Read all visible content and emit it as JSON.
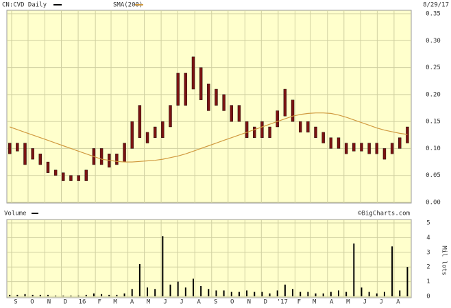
{
  "header": {
    "symbol": "CN:CVD Daily",
    "sma": "SMA(200)",
    "date": "8/29/17"
  },
  "chart_data": [
    {
      "type": "range",
      "x": [
        -0.5,
        1.5,
        3.5,
        5.5,
        7.5,
        9.5,
        11.5,
        13.5,
        15.5,
        17.5,
        19.5,
        21.5,
        23.5,
        25.5,
        27.5,
        29.5,
        31.5,
        33.5,
        35.5,
        37.5,
        39.5,
        41.5,
        43.5,
        45.5,
        47.5,
        49.5,
        51.5,
        53.5,
        55.5,
        57.5,
        59.5,
        61.5,
        63.5,
        65.5,
        67.5,
        69.5,
        71.5,
        73.5,
        75.5,
        77.5,
        79.5,
        81.5,
        83.5,
        85.5,
        87.5,
        89.5,
        91.5,
        93.5,
        95.5,
        97.5,
        99.5,
        101.5,
        103.5
      ],
      "series": [
        {
          "name": "CN:CVD Daily",
          "color": "#7a1212",
          "high": [
            0.11,
            0.11,
            0.11,
            0.1,
            0.09,
            0.075,
            0.06,
            0.055,
            0.05,
            0.05,
            0.06,
            0.1,
            0.1,
            0.09,
            0.09,
            0.11,
            0.15,
            0.18,
            0.13,
            0.14,
            0.15,
            0.18,
            0.24,
            0.24,
            0.27,
            0.25,
            0.22,
            0.21,
            0.2,
            0.18,
            0.18,
            0.15,
            0.14,
            0.15,
            0.14,
            0.17,
            0.21,
            0.19,
            0.15,
            0.15,
            0.14,
            0.13,
            0.12,
            0.12,
            0.11,
            0.11,
            0.11,
            0.11,
            0.11,
            0.1,
            0.11,
            0.12,
            0.14
          ],
          "low": [
            0.09,
            0.095,
            0.07,
            0.08,
            0.07,
            0.055,
            0.05,
            0.04,
            0.04,
            0.04,
            0.04,
            0.07,
            0.07,
            0.065,
            0.07,
            0.075,
            0.1,
            0.12,
            0.11,
            0.12,
            0.12,
            0.14,
            0.18,
            0.18,
            0.21,
            0.19,
            0.17,
            0.18,
            0.17,
            0.15,
            0.15,
            0.12,
            0.12,
            0.12,
            0.12,
            0.14,
            0.16,
            0.15,
            0.13,
            0.13,
            0.12,
            0.11,
            0.1,
            0.1,
            0.09,
            0.095,
            0.095,
            0.09,
            0.09,
            0.08,
            0.09,
            0.1,
            0.11
          ]
        },
        {
          "name": "SMA(200)",
          "color": "#d09a40",
          "values": [
            0.14,
            0.135,
            0.13,
            0.125,
            0.12,
            0.115,
            0.11,
            0.105,
            0.1,
            0.095,
            0.09,
            0.085,
            0.08,
            0.078,
            0.076,
            0.075,
            0.075,
            0.076,
            0.077,
            0.078,
            0.08,
            0.083,
            0.086,
            0.09,
            0.095,
            0.1,
            0.105,
            0.11,
            0.115,
            0.12,
            0.125,
            0.13,
            0.135,
            0.14,
            0.145,
            0.15,
            0.155,
            0.16,
            0.163,
            0.165,
            0.166,
            0.166,
            0.165,
            0.162,
            0.158,
            0.153,
            0.148,
            0.143,
            0.138,
            0.134,
            0.131,
            0.128,
            0.126
          ]
        }
      ],
      "xlim": [
        -1.25,
        104.5
      ],
      "xticks": [
        {
          "value": 0,
          "label": "S"
        },
        {
          "value": 4.3,
          "label": "O"
        },
        {
          "value": 8.7,
          "label": "N"
        },
        {
          "value": 13,
          "label": "D"
        },
        {
          "value": 17.4,
          "label": "16"
        },
        {
          "value": 21.9,
          "label": "F"
        },
        {
          "value": 26,
          "label": "M"
        },
        {
          "value": 30.4,
          "label": "A"
        },
        {
          "value": 34.7,
          "label": "M"
        },
        {
          "value": 39.1,
          "label": "J"
        },
        {
          "value": 43.4,
          "label": "J"
        },
        {
          "value": 47.9,
          "label": "A"
        },
        {
          "value": 52.3,
          "label": "S"
        },
        {
          "value": 56.6,
          "label": "O"
        },
        {
          "value": 61,
          "label": "N"
        },
        {
          "value": 65.3,
          "label": "D"
        },
        {
          "value": 69.7,
          "label": "'17"
        },
        {
          "value": 74.1,
          "label": "F"
        },
        {
          "value": 78.1,
          "label": "M"
        },
        {
          "value": 82.6,
          "label": "A"
        },
        {
          "value": 86.9,
          "label": "M"
        },
        {
          "value": 91.3,
          "label": "J"
        },
        {
          "value": 95.6,
          "label": "J"
        },
        {
          "value": 100,
          "label": "A"
        }
      ],
      "ylim": [
        0,
        0.35
      ],
      "yticks": [
        {
          "value": 0,
          "label": "0.00"
        },
        0.05,
        {
          "value": 0.1,
          "label": "0.10"
        },
        0.15,
        {
          "value": 0.2,
          "label": "0.20"
        },
        0.25,
        {
          "value": 0.3,
          "label": "0.30"
        },
        0.35
      ],
      "grid": true
    },
    {
      "type": "bar",
      "series": [
        {
          "name": "Volume",
          "color": "#000000",
          "values": [
            0.1,
            0.1,
            0.15,
            0.1,
            0.1,
            0.1,
            0.05,
            0.05,
            0.05,
            0.05,
            0.1,
            0.2,
            0.15,
            0.1,
            0.1,
            0.2,
            0.5,
            2.2,
            0.6,
            0.5,
            4.1,
            0.8,
            1.0,
            0.6,
            1.2,
            0.7,
            0.5,
            0.4,
            0.4,
            0.3,
            0.3,
            0.4,
            0.3,
            0.3,
            0.2,
            0.4,
            0.8,
            0.5,
            0.3,
            0.3,
            0.2,
            0.2,
            0.3,
            0.4,
            0.3,
            3.6,
            0.6,
            0.3,
            0.2,
            0.3,
            3.4,
            0.4,
            2.0
          ]
        }
      ],
      "ylabel": "Mil lots",
      "annotation": "©BigCharts.com",
      "ylim": [
        0,
        5
      ],
      "yticks": [
        0,
        1,
        2,
        3,
        4,
        5
      ],
      "grid": true
    }
  ]
}
